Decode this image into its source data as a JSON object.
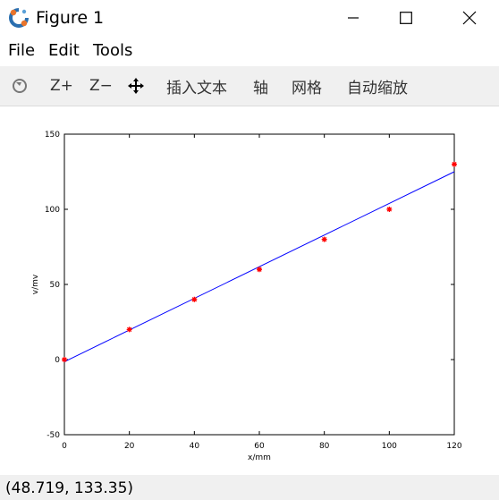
{
  "window": {
    "title": "Figure 1",
    "app_icon": "octave-logo-icon",
    "controls": [
      "minimize-icon",
      "maximize-icon",
      "close-icon"
    ]
  },
  "menu": {
    "items": [
      "File",
      "Edit",
      "Tools"
    ]
  },
  "toolbar": {
    "rotate_icon": "rotate-icon",
    "zoom_in": "Z+",
    "zoom_out": "Z−",
    "pan_icon": "pan-move-icon",
    "insert_text": "插入文本",
    "axis": "轴",
    "grid": "网格",
    "autoscale": "自动缩放"
  },
  "chart_data": {
    "type": "scatter",
    "xlabel": "x/mm",
    "ylabel": "v/mv",
    "xlim": [
      0,
      120
    ],
    "ylim": [
      -50,
      150
    ],
    "xticks": [
      0,
      20,
      40,
      60,
      80,
      100,
      120
    ],
    "yticks": [
      -50,
      0,
      50,
      100,
      150
    ],
    "grid": false,
    "series": [
      {
        "kind": "markers",
        "marker": "*",
        "color": "#ff0000",
        "x": [
          0,
          20,
          40,
          60,
          80,
          100,
          120
        ],
        "y": [
          0,
          20,
          40,
          60,
          80,
          100,
          130
        ]
      },
      {
        "kind": "line",
        "color": "#0000ff",
        "x": [
          0,
          120
        ],
        "y": [
          -1.43,
          125.0
        ]
      }
    ]
  },
  "status": {
    "coordinates": "(48.719, 133.35)"
  }
}
